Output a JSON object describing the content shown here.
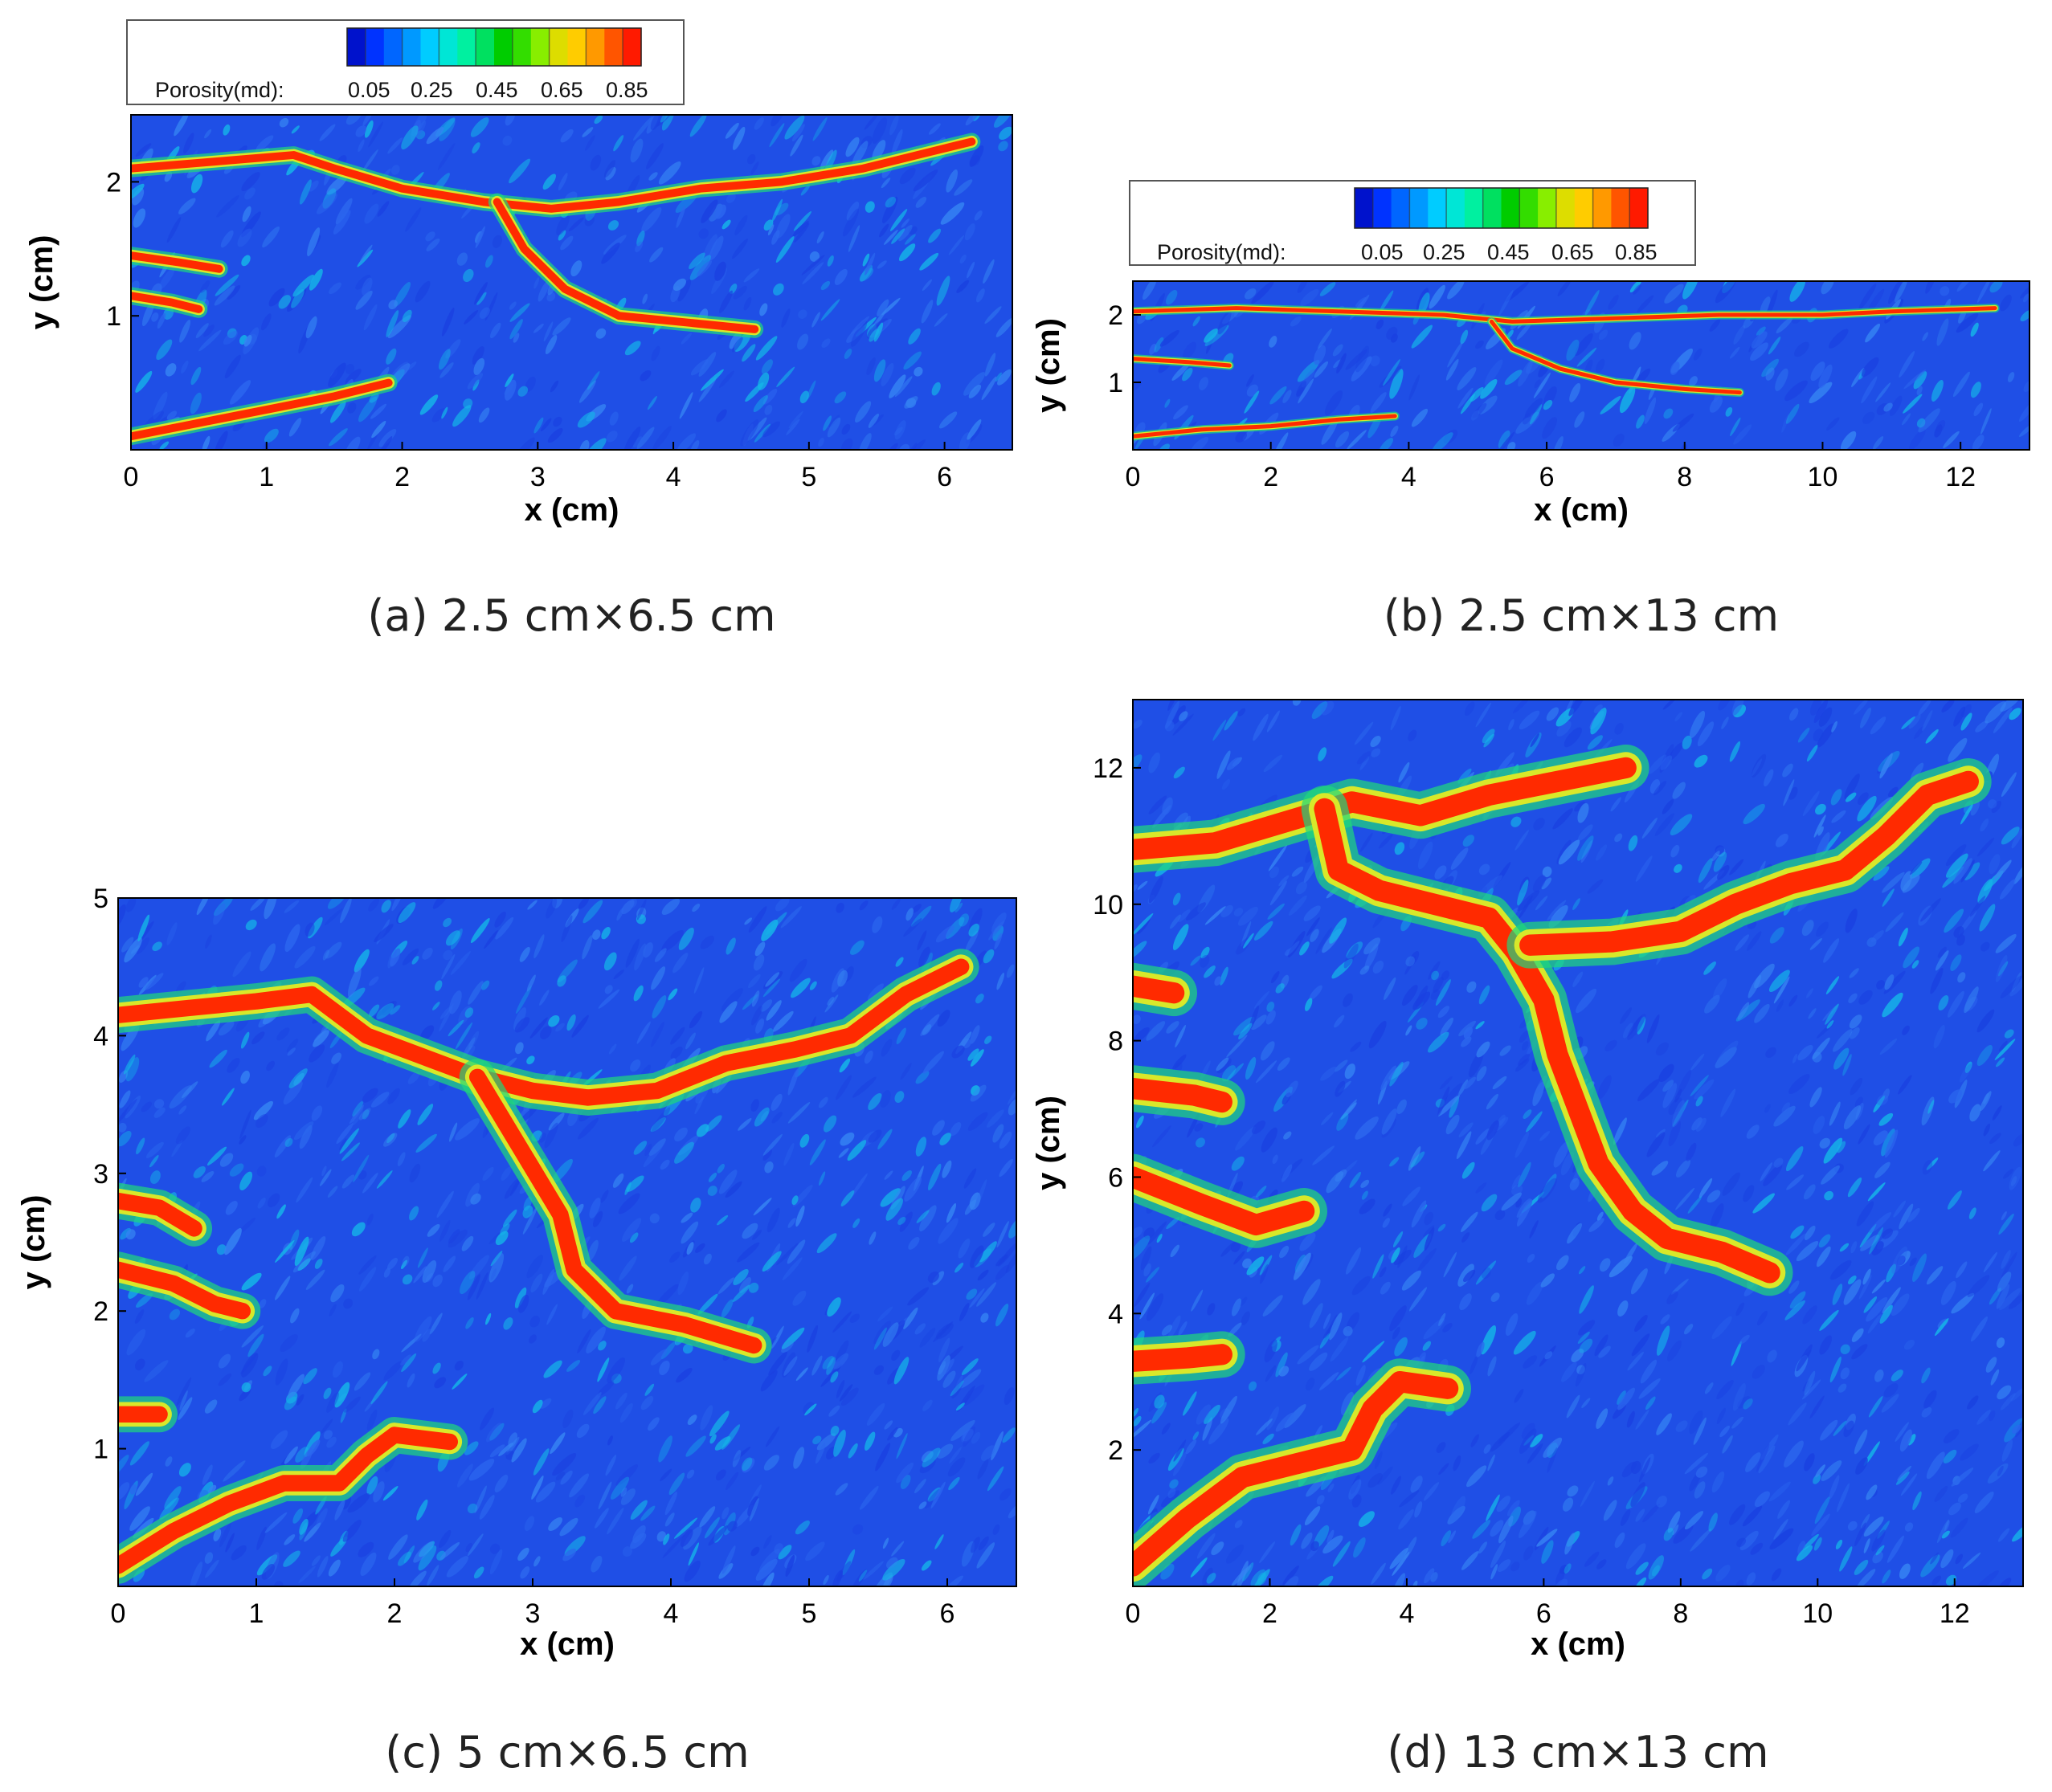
{
  "figure": {
    "colorbar": {
      "label": "Porosity(md):",
      "tick_labels": [
        "0.05",
        "0.25",
        "0.45",
        "0.65",
        "0.85"
      ],
      "colors": [
        "#0012cc",
        "#0033ff",
        "#0066ff",
        "#0099ff",
        "#00ccff",
        "#00e6d6",
        "#00f0a0",
        "#00e060",
        "#00cc00",
        "#33dd00",
        "#88ee00",
        "#dddd00",
        "#ffcc00",
        "#ff9900",
        "#ff5500",
        "#ff1a00"
      ]
    },
    "map_colors": {
      "background": "#1f4fe6",
      "texture": [
        "#1a3fe0",
        "#2e6bf0",
        "#3a8df5",
        "#14c8e8"
      ],
      "channel_edge": "#1fd87a",
      "channel_rim": "#d8e82a",
      "channel_core": "#ff2a00"
    }
  },
  "chart_data": [
    {
      "type": "heatmap",
      "caption": "(a)  2.5 cm×6.5 cm",
      "xlabel": "x (cm)",
      "ylabel": "y (cm)",
      "xlim": [
        0,
        6.5
      ],
      "ylim": [
        0,
        2.5
      ],
      "xticks": [
        0,
        1,
        2,
        3,
        4,
        5,
        6
      ],
      "yticks": [
        1,
        2
      ],
      "show_colorbar": true,
      "channels": [
        [
          [
            0,
            2.1
          ],
          [
            0.6,
            2.15
          ],
          [
            1.2,
            2.2
          ],
          [
            1.5,
            2.1
          ],
          [
            2.0,
            1.95
          ],
          [
            2.6,
            1.85
          ],
          [
            3.1,
            1.8
          ],
          [
            3.6,
            1.85
          ],
          [
            4.2,
            1.95
          ],
          [
            4.8,
            2.0
          ],
          [
            5.4,
            2.1
          ],
          [
            5.8,
            2.2
          ],
          [
            6.2,
            2.3
          ]
        ],
        [
          [
            2.7,
            1.85
          ],
          [
            2.9,
            1.5
          ],
          [
            3.2,
            1.2
          ],
          [
            3.6,
            1.0
          ],
          [
            4.1,
            0.95
          ],
          [
            4.6,
            0.9
          ]
        ],
        [
          [
            0,
            1.45
          ],
          [
            0.35,
            1.4
          ],
          [
            0.65,
            1.35
          ]
        ],
        [
          [
            0,
            1.15
          ],
          [
            0.3,
            1.1
          ],
          [
            0.5,
            1.05
          ]
        ],
        [
          [
            0,
            0.1
          ],
          [
            0.5,
            0.2
          ],
          [
            1.0,
            0.3
          ],
          [
            1.5,
            0.4
          ],
          [
            1.9,
            0.5
          ]
        ]
      ]
    },
    {
      "type": "heatmap",
      "caption": "(b)  2.5 cm×13 cm",
      "xlabel": "x (cm)",
      "ylabel": "y (cm)",
      "xlim": [
        0,
        13
      ],
      "ylim": [
        0,
        2.5
      ],
      "xticks": [
        0,
        2,
        4,
        6,
        8,
        10,
        12
      ],
      "yticks": [
        1,
        2
      ],
      "show_colorbar": true,
      "channels": [
        [
          [
            0,
            2.05
          ],
          [
            1.5,
            2.1
          ],
          [
            3,
            2.05
          ],
          [
            4.5,
            2.0
          ],
          [
            5.5,
            1.9
          ],
          [
            7,
            1.95
          ],
          [
            8.5,
            2.0
          ],
          [
            10,
            2.0
          ],
          [
            11,
            2.05
          ],
          [
            12.5,
            2.1
          ]
        ],
        [
          [
            5.2,
            1.9
          ],
          [
            5.5,
            1.5
          ],
          [
            6.2,
            1.2
          ],
          [
            7.0,
            1.0
          ],
          [
            8.0,
            0.9
          ],
          [
            8.8,
            0.85
          ]
        ],
        [
          [
            0,
            1.35
          ],
          [
            0.8,
            1.3
          ],
          [
            1.4,
            1.25
          ]
        ],
        [
          [
            0,
            0.2
          ],
          [
            1.0,
            0.3
          ],
          [
            2.0,
            0.35
          ],
          [
            3.0,
            0.45
          ],
          [
            3.8,
            0.5
          ]
        ]
      ]
    },
    {
      "type": "heatmap",
      "caption": "(c)  5 cm×6.5 cm",
      "xlabel": "x (cm)",
      "ylabel": "y (cm)",
      "xlim": [
        0,
        6.5
      ],
      "ylim": [
        0,
        5
      ],
      "xticks": [
        0,
        1,
        2,
        3,
        4,
        5,
        6
      ],
      "yticks": [
        1,
        2,
        3,
        4,
        5
      ],
      "show_colorbar": false,
      "channels": [
        [
          [
            0,
            4.15
          ],
          [
            0.5,
            4.2
          ],
          [
            1.0,
            4.25
          ],
          [
            1.4,
            4.3
          ],
          [
            1.8,
            4.0
          ],
          [
            2.2,
            3.85
          ],
          [
            2.6,
            3.7
          ],
          [
            3.0,
            3.6
          ],
          [
            3.4,
            3.55
          ],
          [
            3.9,
            3.6
          ],
          [
            4.4,
            3.8
          ],
          [
            4.9,
            3.9
          ],
          [
            5.3,
            4.0
          ],
          [
            5.7,
            4.3
          ],
          [
            6.1,
            4.5
          ]
        ],
        [
          [
            2.6,
            3.7
          ],
          [
            2.9,
            3.2
          ],
          [
            3.2,
            2.7
          ],
          [
            3.3,
            2.3
          ],
          [
            3.6,
            2.0
          ],
          [
            4.1,
            1.9
          ],
          [
            4.6,
            1.75
          ]
        ],
        [
          [
            0,
            2.8
          ],
          [
            0.3,
            2.75
          ],
          [
            0.55,
            2.6
          ]
        ],
        [
          [
            0,
            2.3
          ],
          [
            0.4,
            2.2
          ],
          [
            0.7,
            2.05
          ],
          [
            0.9,
            2.0
          ]
        ],
        [
          [
            0,
            1.25
          ],
          [
            0.3,
            1.25
          ]
        ],
        [
          [
            0,
            0.15
          ],
          [
            0.4,
            0.4
          ],
          [
            0.8,
            0.6
          ],
          [
            1.2,
            0.75
          ],
          [
            1.6,
            0.75
          ],
          [
            1.8,
            0.95
          ],
          [
            2.0,
            1.1
          ],
          [
            2.4,
            1.05
          ]
        ]
      ]
    },
    {
      "type": "heatmap",
      "caption": "(d)  13 cm×13 cm",
      "xlabel": "x (cm)",
      "ylabel": "y (cm)",
      "xlim": [
        0,
        13
      ],
      "ylim": [
        0,
        13
      ],
      "xticks": [
        0,
        2,
        4,
        6,
        8,
        10,
        12
      ],
      "yticks": [
        2,
        4,
        6,
        8,
        10,
        12
      ],
      "show_colorbar": false,
      "channels": [
        [
          [
            0,
            10.8
          ],
          [
            1.2,
            10.9
          ],
          [
            2.2,
            11.2
          ],
          [
            3.2,
            11.5
          ],
          [
            4.2,
            11.3
          ],
          [
            5.2,
            11.6
          ],
          [
            6.2,
            11.8
          ],
          [
            7.2,
            12.0
          ]
        ],
        [
          [
            2.8,
            11.4
          ],
          [
            3.0,
            10.5
          ],
          [
            3.6,
            10.2
          ],
          [
            4.4,
            10.0
          ],
          [
            5.2,
            9.8
          ],
          [
            5.6,
            9.3
          ],
          [
            6.0,
            8.6
          ],
          [
            6.2,
            7.8
          ],
          [
            6.5,
            7.0
          ],
          [
            6.8,
            6.2
          ],
          [
            7.3,
            5.5
          ],
          [
            7.8,
            5.1
          ],
          [
            8.6,
            4.9
          ],
          [
            9.3,
            4.6
          ]
        ],
        [
          [
            5.8,
            9.4
          ],
          [
            7.0,
            9.45
          ],
          [
            8.0,
            9.6
          ],
          [
            8.8,
            10.0
          ],
          [
            9.6,
            10.3
          ],
          [
            10.4,
            10.5
          ],
          [
            11.0,
            11.0
          ],
          [
            11.6,
            11.6
          ],
          [
            12.2,
            11.8
          ]
        ],
        [
          [
            0,
            8.8
          ],
          [
            0.6,
            8.7
          ]
        ],
        [
          [
            0,
            7.3
          ],
          [
            0.9,
            7.2
          ],
          [
            1.3,
            7.1
          ]
        ],
        [
          [
            0,
            6.0
          ],
          [
            1.0,
            5.6
          ],
          [
            1.8,
            5.3
          ],
          [
            2.5,
            5.5
          ]
        ],
        [
          [
            0,
            3.3
          ],
          [
            0.8,
            3.35
          ],
          [
            1.3,
            3.4
          ]
        ],
        [
          [
            0,
            0.3
          ],
          [
            0.8,
            1.0
          ],
          [
            1.6,
            1.6
          ],
          [
            2.4,
            1.8
          ],
          [
            3.2,
            2.0
          ],
          [
            3.5,
            2.6
          ],
          [
            3.9,
            3.0
          ],
          [
            4.6,
            2.9
          ]
        ]
      ]
    }
  ]
}
